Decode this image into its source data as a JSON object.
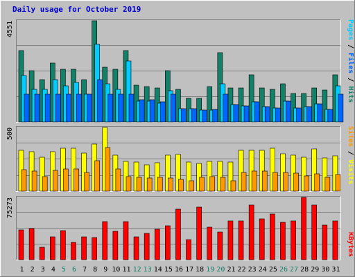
{
  "chart_data": [
    {
      "type": "bar",
      "title": "Daily usage for October 2019",
      "ylabel_parts": [
        "Pages",
        "Files",
        "Hits"
      ],
      "ymax_label": "4551",
      "ylim": [
        0,
        4551
      ],
      "categories": [
        "1",
        "2",
        "3",
        "4",
        "5",
        "6",
        "7",
        "8",
        "9",
        "10",
        "11",
        "12",
        "13",
        "14",
        "15",
        "16",
        "17",
        "18",
        "19",
        "20",
        "21",
        "22",
        "23",
        "24",
        "25",
        "26",
        "27",
        "28",
        "29",
        "30",
        "31"
      ],
      "weekend_days": [
        "5",
        "6",
        "12",
        "13",
        "19",
        "20",
        "26",
        "27"
      ],
      "series": [
        {
          "name": "Hits",
          "color": "#138067",
          "values": [
            3215,
            2306,
            1912,
            2643,
            2367,
            2367,
            1912,
            4551,
            2458,
            2367,
            3215,
            1639,
            1579,
            1518,
            2306,
            1457,
            1063,
            1063,
            1579,
            3124,
            1517,
            1517,
            2124,
            1518,
            1457,
            1730,
            1275,
            1275,
            1518,
            1427,
            2124
          ]
        },
        {
          "name": "Files",
          "color": "#00ccff",
          "values": [
            2094,
            1457,
            1457,
            1912,
            1609,
            1790,
            1245,
            3488,
            1700,
            1457,
            2731,
            941,
            941,
            850,
            1396,
            577,
            577,
            516,
            516,
            1730,
            788,
            728,
            910,
            698,
            637,
            941,
            637,
            698,
            819,
            546,
            1609
          ]
        },
        {
          "name": "Pages",
          "color": "#0066ff",
          "values": [
            1240,
            1240,
            1240,
            1240,
            1240,
            1240,
            1240,
            1913,
            1240,
            1240,
            1240,
            1010,
            1010,
            910,
            1240,
            577,
            577,
            516,
            546,
            1240,
            788,
            728,
            910,
            698,
            637,
            941,
            637,
            698,
            819,
            546,
            1240
          ]
        }
      ]
    },
    {
      "type": "bar",
      "ylabel_parts": [
        "Sites",
        "Visits"
      ],
      "ymax_label": "500",
      "ylim": [
        0,
        500
      ],
      "categories": [
        "1",
        "2",
        "3",
        "4",
        "5",
        "6",
        "7",
        "8",
        "9",
        "10",
        "11",
        "12",
        "13",
        "14",
        "15",
        "16",
        "17",
        "18",
        "19",
        "20",
        "21",
        "22",
        "23",
        "24",
        "25",
        "26",
        "27",
        "28",
        "29",
        "30",
        "31"
      ],
      "series": [
        {
          "name": "Visits",
          "color": "#ffff00",
          "values": [
            320,
            310,
            265,
            310,
            335,
            335,
            300,
            370,
            500,
            280,
            235,
            230,
            205,
            225,
            280,
            290,
            230,
            220,
            235,
            235,
            230,
            320,
            320,
            320,
            335,
            295,
            280,
            265,
            330,
            260,
            275
          ]
        },
        {
          "name": "Sites",
          "color": "#ff9900",
          "values": [
            170,
            160,
            115,
            165,
            175,
            175,
            145,
            240,
            345,
            175,
            115,
            110,
            105,
            110,
            105,
            90,
            80,
            110,
            115,
            110,
            80,
            145,
            160,
            160,
            145,
            145,
            140,
            120,
            135,
            110,
            130
          ]
        }
      ]
    },
    {
      "type": "bar",
      "ylabel_parts": [
        "KBytes"
      ],
      "ymax_label": "75273",
      "ylim": [
        0,
        75273
      ],
      "categories": [
        "1",
        "2",
        "3",
        "4",
        "5",
        "6",
        "7",
        "8",
        "9",
        "10",
        "11",
        "12",
        "13",
        "14",
        "15",
        "16",
        "17",
        "18",
        "19",
        "20",
        "21",
        "22",
        "23",
        "24",
        "25",
        "26",
        "27",
        "28",
        "29",
        "30",
        "31"
      ],
      "series": [
        {
          "name": "KBytes",
          "color": "#ff0000",
          "values": [
            35800,
            37400,
            15400,
            28000,
            35000,
            20500,
            28000,
            27000,
            45600,
            34500,
            45900,
            28000,
            32100,
            37000,
            40600,
            61400,
            24100,
            63800,
            39000,
            33600,
            46500,
            46500,
            65800,
            49700,
            55200,
            45300,
            47000,
            75273,
            65800,
            41800,
            46500
          ]
        }
      ]
    }
  ]
}
